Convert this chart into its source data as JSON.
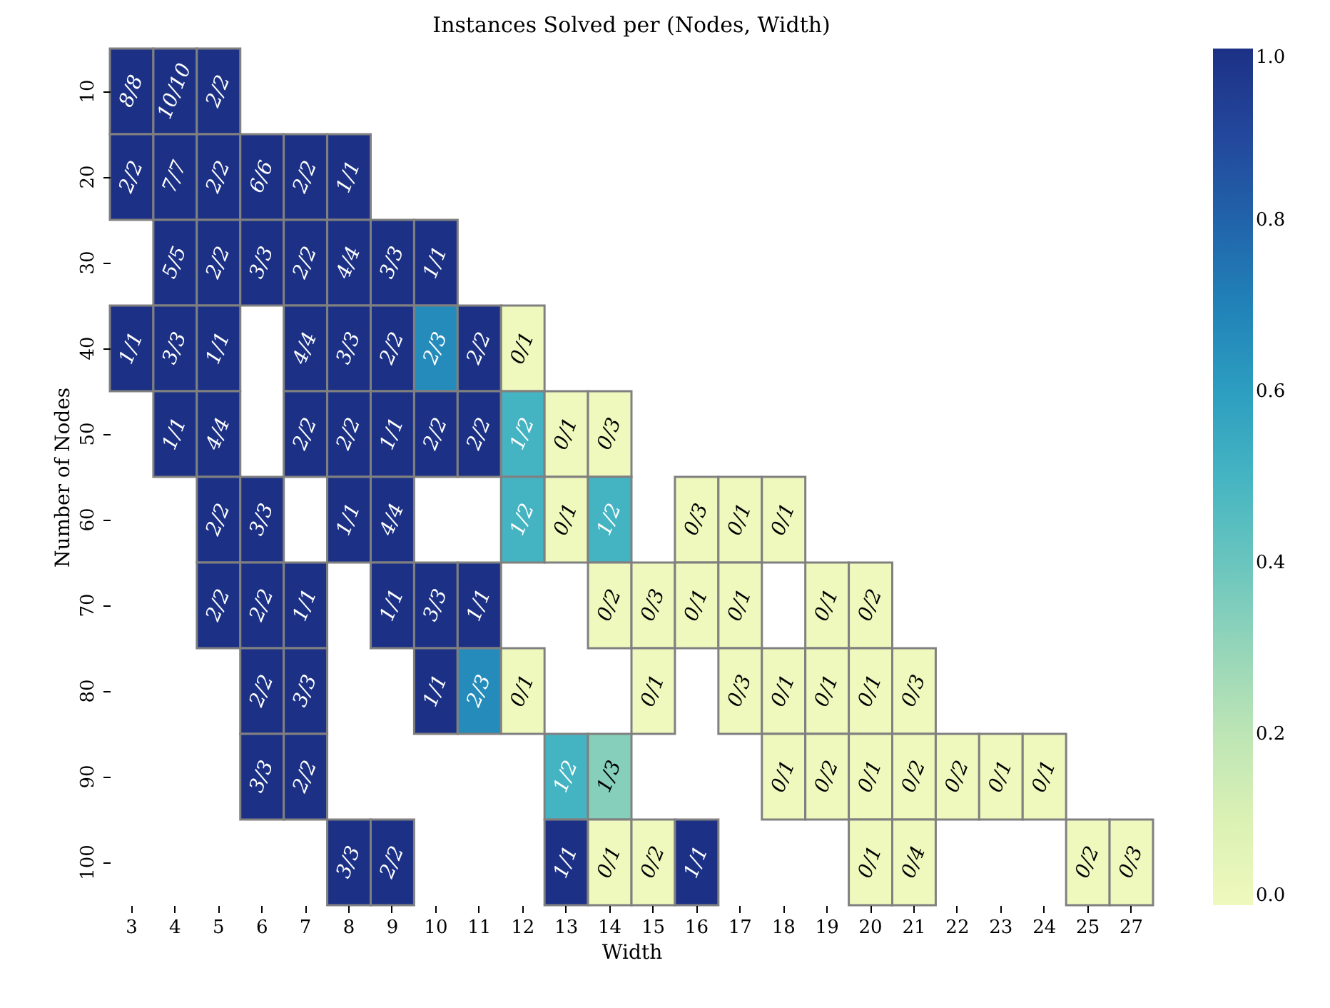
{
  "chart_data": {
    "type": "heatmap",
    "title": "Instances Solved per (Nodes, Width)",
    "xlabel": "Width",
    "ylabel": "Number of Nodes",
    "categories": [
      "3",
      "4",
      "5",
      "6",
      "7",
      "8",
      "9",
      "10",
      "11",
      "12",
      "13",
      "14",
      "15",
      "16",
      "17",
      "18",
      "19",
      "20",
      "21",
      "22",
      "23",
      "24",
      "25",
      "27"
    ],
    "y_categories": [
      "10",
      "20",
      "30",
      "40",
      "50",
      "60",
      "70",
      "80",
      "90",
      "100"
    ],
    "cells": [
      [
        1,
        1,
        1,
        null,
        null,
        null,
        null,
        null,
        null,
        null,
        null,
        null,
        null,
        null,
        null,
        null,
        null,
        null,
        null,
        null,
        null,
        null,
        null,
        null
      ],
      [
        1,
        1,
        1,
        1,
        1,
        1,
        null,
        null,
        null,
        null,
        null,
        null,
        null,
        null,
        null,
        null,
        null,
        null,
        null,
        null,
        null,
        null,
        null,
        null
      ],
      [
        null,
        1,
        1,
        1,
        1,
        1,
        1,
        1,
        null,
        null,
        null,
        null,
        null,
        null,
        null,
        null,
        null,
        null,
        null,
        null,
        null,
        null,
        null,
        null
      ],
      [
        1,
        1,
        1,
        null,
        1,
        1,
        1,
        0.667,
        1,
        0,
        null,
        null,
        null,
        null,
        null,
        null,
        null,
        null,
        null,
        null,
        null,
        null,
        null,
        null
      ],
      [
        null,
        1,
        1,
        null,
        1,
        1,
        1,
        1,
        1,
        0.5,
        0,
        0,
        null,
        null,
        null,
        null,
        null,
        null,
        null,
        null,
        null,
        null,
        null,
        null
      ],
      [
        null,
        null,
        1,
        1,
        null,
        1,
        1,
        null,
        null,
        0.5,
        0,
        0.5,
        null,
        0,
        0,
        0,
        null,
        null,
        null,
        null,
        null,
        null,
        null,
        null
      ],
      [
        null,
        null,
        1,
        1,
        1,
        null,
        1,
        1,
        1,
        null,
        null,
        0,
        0,
        0,
        0,
        null,
        0,
        0,
        null,
        null,
        null,
        null,
        null,
        null
      ],
      [
        null,
        null,
        null,
        1,
        1,
        null,
        null,
        1,
        0.667,
        0,
        null,
        null,
        0,
        null,
        0,
        0,
        0,
        0,
        0,
        null,
        null,
        null,
        null,
        null
      ],
      [
        null,
        null,
        null,
        1,
        1,
        null,
        null,
        null,
        null,
        null,
        0.5,
        0.333,
        null,
        null,
        null,
        0,
        0,
        0,
        0,
        0,
        0,
        0,
        null,
        null
      ],
      [
        null,
        null,
        null,
        null,
        null,
        1,
        1,
        null,
        null,
        null,
        1,
        0,
        0,
        1,
        null,
        null,
        null,
        0,
        0,
        null,
        null,
        null,
        0,
        0
      ]
    ],
    "cell_labels": [
      [
        "8/8",
        "10/10",
        "2/2",
        null,
        null,
        null,
        null,
        null,
        null,
        null,
        null,
        null,
        null,
        null,
        null,
        null,
        null,
        null,
        null,
        null,
        null,
        null,
        null,
        null
      ],
      [
        "2/2",
        "7/7",
        "2/2",
        "6/6",
        "2/2",
        "1/1",
        null,
        null,
        null,
        null,
        null,
        null,
        null,
        null,
        null,
        null,
        null,
        null,
        null,
        null,
        null,
        null,
        null,
        null
      ],
      [
        null,
        "5/5",
        "2/2",
        "3/3",
        "2/2",
        "4/4",
        "3/3",
        "1/1",
        null,
        null,
        null,
        null,
        null,
        null,
        null,
        null,
        null,
        null,
        null,
        null,
        null,
        null,
        null,
        null
      ],
      [
        "1/1",
        "3/3",
        "1/1",
        null,
        "4/4",
        "3/3",
        "2/2",
        "2/3",
        "2/2",
        "0/1",
        null,
        null,
        null,
        null,
        null,
        null,
        null,
        null,
        null,
        null,
        null,
        null,
        null,
        null
      ],
      [
        null,
        "1/1",
        "4/4",
        null,
        "2/2",
        "2/2",
        "1/1",
        "2/2",
        "2/2",
        "1/2",
        "0/1",
        "0/3",
        null,
        null,
        null,
        null,
        null,
        null,
        null,
        null,
        null,
        null,
        null,
        null
      ],
      [
        null,
        null,
        "2/2",
        "3/3",
        null,
        "1/1",
        "4/4",
        null,
        null,
        "1/2",
        "0/1",
        "1/2",
        null,
        "0/3",
        "0/1",
        "0/1",
        null,
        null,
        null,
        null,
        null,
        null,
        null,
        null
      ],
      [
        null,
        null,
        "2/2",
        "2/2",
        "1/1",
        null,
        "1/1",
        "3/3",
        "1/1",
        null,
        null,
        "0/2",
        "0/3",
        "0/1",
        "0/1",
        null,
        "0/1",
        "0/2",
        null,
        null,
        null,
        null,
        null,
        null
      ],
      [
        null,
        null,
        null,
        "2/2",
        "3/3",
        null,
        null,
        "1/1",
        "2/3",
        "0/1",
        null,
        null,
        "0/1",
        null,
        "0/3",
        "0/1",
        "0/1",
        "0/1",
        "0/3",
        null,
        null,
        null,
        null,
        null
      ],
      [
        null,
        null,
        null,
        "3/3",
        "2/2",
        null,
        null,
        null,
        null,
        null,
        "1/2",
        "1/3",
        null,
        null,
        null,
        "0/1",
        "0/2",
        "0/1",
        "0/2",
        "0/2",
        "0/1",
        "0/1",
        null,
        null
      ],
      [
        null,
        null,
        null,
        null,
        null,
        "3/3",
        "2/2",
        null,
        null,
        null,
        "1/1",
        "0/1",
        "0/2",
        "1/1",
        null,
        null,
        null,
        "0/1",
        "0/4",
        null,
        null,
        null,
        "0/2",
        "0/3"
      ]
    ],
    "clim": [
      0,
      1
    ],
    "cticks": [
      {
        "value": 0,
        "label": "0.0"
      },
      {
        "value": 0.2,
        "label": "0.2"
      },
      {
        "value": 0.4,
        "label": "0.4"
      },
      {
        "value": 0.6,
        "label": "0.6"
      },
      {
        "value": 0.8,
        "label": "0.8"
      },
      {
        "value": 1,
        "label": "1.0"
      }
    ]
  }
}
